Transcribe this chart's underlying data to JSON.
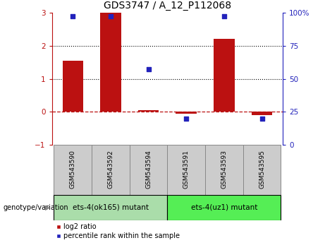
{
  "title": "GDS3747 / A_12_P112068",
  "categories": [
    "GSM543590",
    "GSM543592",
    "GSM543594",
    "GSM543591",
    "GSM543593",
    "GSM543595"
  ],
  "log2_ratio": [
    1.55,
    3.0,
    0.05,
    -0.05,
    2.2,
    -0.1
  ],
  "percentile_rank": [
    97,
    97,
    57,
    20,
    97,
    20
  ],
  "bar_color": "#bb1111",
  "dot_color": "#2222bb",
  "ylim_left": [
    -1,
    3
  ],
  "ylim_right": [
    0,
    100
  ],
  "group1_label": "ets-4(ok165) mutant",
  "group2_label": "ets-4(uz1) mutant",
  "group1_indices": [
    0,
    1,
    2
  ],
  "group2_indices": [
    3,
    4,
    5
  ],
  "group1_color": "#aaddaa",
  "group2_color": "#55ee55",
  "genotype_label": "genotype/variation",
  "legend_red": "log2 ratio",
  "legend_blue": "percentile rank within the sample",
  "background_color": "#ffffff",
  "tick_label_fontsize": 7.5,
  "title_fontsize": 10,
  "box_bg": "#cccccc",
  "box_edge": "#888888"
}
